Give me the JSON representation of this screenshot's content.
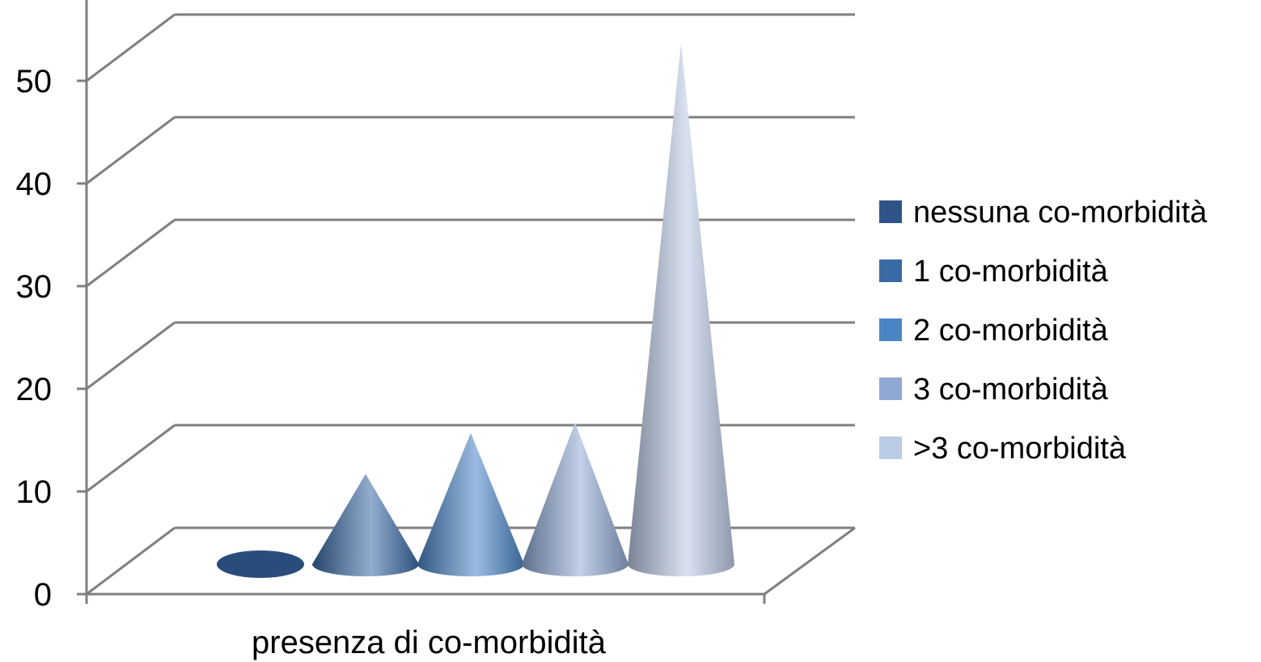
{
  "chart_data": {
    "type": "bar",
    "subtype": "3d-cone",
    "categories": [
      "presenza di co-morbidità"
    ],
    "series": [
      {
        "name": "nessuna co-morbidità",
        "values": [
          0
        ],
        "color": "#2f5487"
      },
      {
        "name": "1 co-morbidità",
        "values": [
          8
        ],
        "color": "#3a6aa5"
      },
      {
        "name": "2 co-morbidità",
        "values": [
          12
        ],
        "color": "#4a86c6"
      },
      {
        "name": "3 co-morbidità",
        "values": [
          13
        ],
        "color": "#90a9d4"
      },
      {
        "name": ">3 co-morbidità",
        "values": [
          50
        ],
        "color": "#bccbe5"
      }
    ],
    "y_ticks": [
      "0",
      "10",
      "20",
      "30",
      "40",
      "50"
    ],
    "ylim": [
      0,
      60
    ],
    "grid": true,
    "legend_position": "right"
  }
}
